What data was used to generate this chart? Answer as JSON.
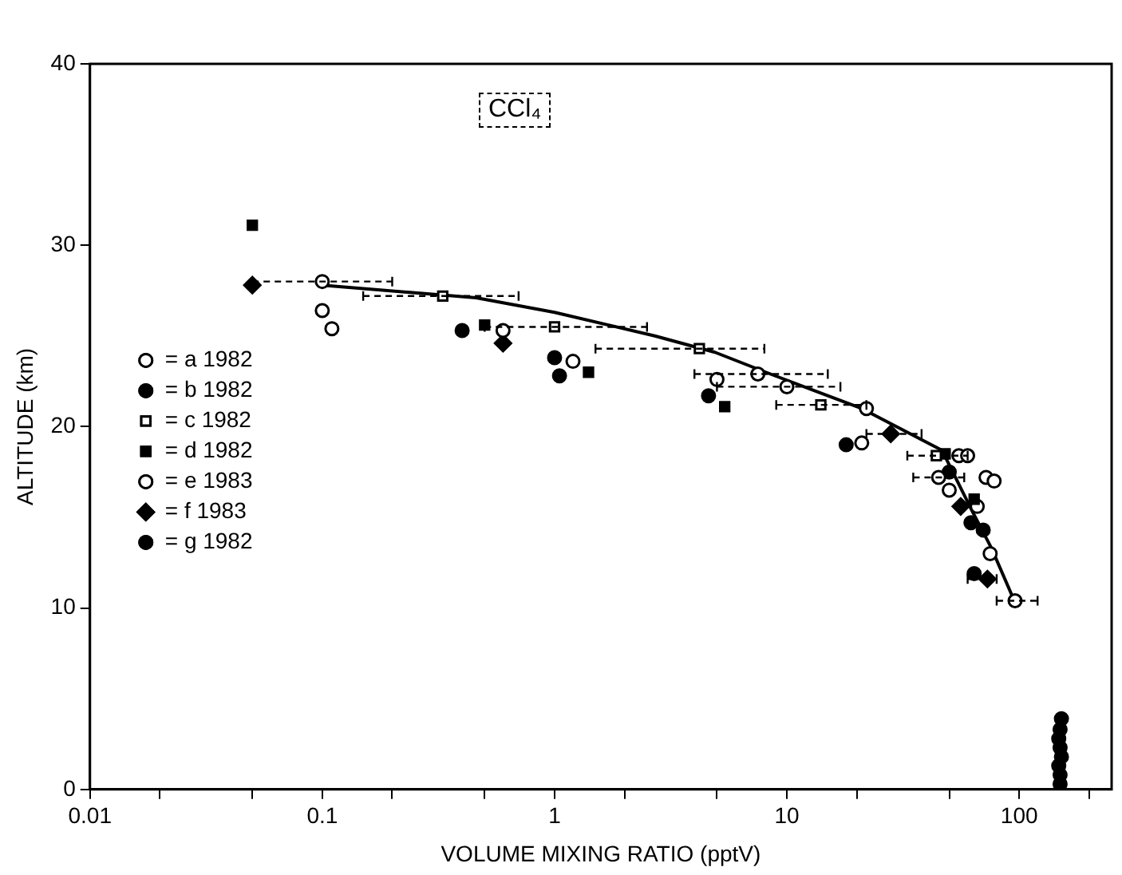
{
  "chart_data": {
    "type": "scatter",
    "xlabel": "VOLUME MIXING RATIO (pptV)",
    "ylabel": "ALTITUDE (km)",
    "annotations": [
      "CCl₄"
    ],
    "log": "x",
    "grid": false,
    "legend": "left",
    "xlim": [
      0.01,
      250
    ],
    "ylim": [
      0,
      40
    ],
    "xticks": [
      {
        "value": 0.01,
        "label": "0.01"
      },
      {
        "value": 0.02,
        "label": null
      },
      {
        "value": 0.05,
        "label": null
      },
      {
        "value": 0.1,
        "label": "0.1"
      },
      {
        "value": 0.2,
        "label": null
      },
      {
        "value": 0.5,
        "label": null
      },
      {
        "value": 1,
        "label": "1"
      },
      {
        "value": 2,
        "label": null
      },
      {
        "value": 5,
        "label": null
      },
      {
        "value": 10,
        "label": "10"
      },
      {
        "value": 20,
        "label": null
      },
      {
        "value": 50,
        "label": null
      },
      {
        "value": 100,
        "label": "100"
      },
      {
        "value": 200,
        "label": null
      }
    ],
    "yticks": [
      0,
      10,
      20,
      30,
      40
    ],
    "series": [
      {
        "name": "= a 1982",
        "color": "#ffffff",
        "marker": "circle",
        "x": [
          0.11,
          5,
          21,
          22,
          50,
          75
        ],
        "values": [
          25.4,
          22.6,
          19.1,
          21.0,
          16.5,
          13.0
        ]
      },
      {
        "name": "= b 1982",
        "color": "#000000",
        "marker": "circle",
        "x": [
          0.4,
          1,
          1.05,
          4.6,
          18,
          62
        ],
        "values": [
          25.3,
          23.8,
          22.8,
          21.7,
          19.0,
          14.7
        ]
      },
      {
        "name": "= c 1982",
        "color": "#ffffff",
        "marker": "square",
        "x": [
          0.33,
          1,
          4.2,
          14,
          44
        ],
        "values": [
          27.2,
          25.5,
          24.3,
          21.2,
          18.4
        ],
        "xerrors": [
          [
            0.15,
            0.7
          ],
          [
            0.5,
            2.5
          ],
          [
            1.5,
            8
          ],
          [
            9,
            22
          ],
          [
            33,
            60
          ]
        ]
      },
      {
        "name": "= d 1982",
        "color": "#000000",
        "marker": "square",
        "x": [
          0.05,
          0.5,
          1.4,
          5.4,
          48,
          64
        ],
        "values": [
          31.1,
          25.6,
          23.0,
          21.1,
          18.5,
          16.0
        ]
      },
      {
        "name": "= e 1983",
        "color": "#ffffff",
        "marker": "circle",
        "x": [
          0.1,
          0.1,
          0.6,
          1.2,
          7.5,
          10,
          55,
          60,
          45,
          72,
          78,
          66,
          96
        ],
        "values": [
          28.0,
          26.4,
          25.3,
          23.6,
          22.9,
          22.2,
          18.4,
          18.4,
          17.2,
          17.2,
          17.0,
          15.6,
          10.4
        ],
        "xerrors": [
          [
            0.05,
            0.2
          ],
          null,
          null,
          null,
          [
            4,
            15
          ],
          [
            5,
            17
          ],
          null,
          null,
          [
            35,
            58
          ],
          null,
          null,
          null,
          [
            80,
            120
          ]
        ]
      },
      {
        "name": "= f 1983",
        "color": "#000000",
        "marker": "diamond",
        "x": [
          0.05,
          0.6,
          28,
          56,
          73
        ],
        "values": [
          27.8,
          24.6,
          19.6,
          15.6,
          11.6
        ],
        "xerrors": [
          null,
          null,
          [
            22,
            38
          ],
          null,
          [
            60,
            80
          ]
        ]
      },
      {
        "name": "= g 1982",
        "color": "#000000",
        "marker": "circle",
        "x": [
          150,
          150,
          148,
          152,
          150,
          148,
          150,
          152,
          50,
          70,
          64
        ],
        "values": [
          0.3,
          0.8,
          1.3,
          1.8,
          2.3,
          2.8,
          3.3,
          3.9,
          17.5,
          14.3,
          11.9
        ]
      },
      {
        "type": "line",
        "color": "#000000",
        "marker": "none",
        "x": [
          0.1,
          0.46,
          1,
          2.7,
          4.9,
          8.5,
          21,
          46.5,
          63,
          76,
          96
        ],
        "values": [
          27.8,
          27.1,
          26.3,
          25.0,
          24.1,
          22.9,
          21.0,
          18.7,
          15.3,
          13.3,
          10.3
        ]
      }
    ]
  }
}
